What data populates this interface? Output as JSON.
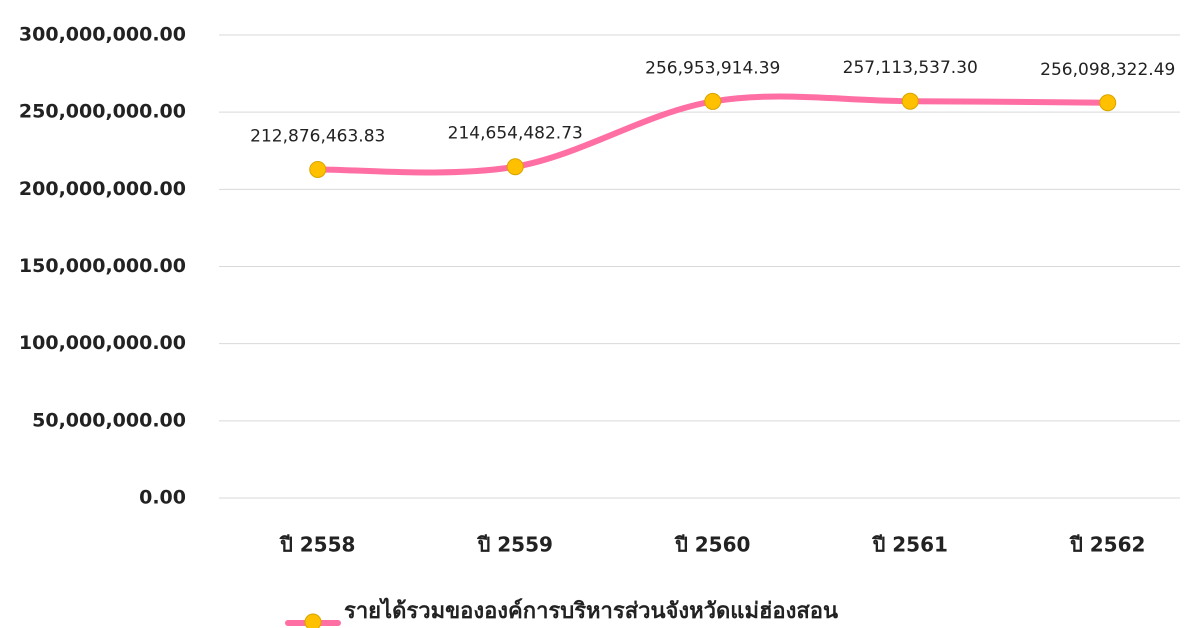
{
  "chart_data": {
    "type": "line",
    "categories": [
      "ปี 2558",
      "ปี 2559",
      "ปี 2560",
      "ปี 2561",
      "ปี 2562"
    ],
    "series": [
      {
        "name": "รายได้รวมขององค์การบริหารส่วนจังหวัดแม่ฮ่องสอน",
        "color": "#ff6fa3",
        "marker_color": "#ffc000",
        "values": [
          212876463.83,
          214654482.73,
          256953914.39,
          257113537.3,
          256098322.49
        ],
        "value_labels": [
          "212,876,463.83",
          "214,654,482.73",
          "256,953,914.39",
          "257,113,537.30",
          "256,098,322.49"
        ]
      }
    ],
    "ylim": [
      0,
      300000000
    ],
    "yticks": [
      {
        "value": 0,
        "label": "0.00"
      },
      {
        "value": 50000000,
        "label": "50,000,000.00"
      },
      {
        "value": 100000000,
        "label": "100,000,000.00"
      },
      {
        "value": 150000000,
        "label": "150,000,000.00"
      },
      {
        "value": 200000000,
        "label": "200,000,000.00"
      },
      {
        "value": 250000000,
        "label": "250,000,000.00"
      },
      {
        "value": 300000000,
        "label": "300,000,000.00"
      }
    ],
    "grid": true,
    "smooth": true,
    "legend": "bottom"
  }
}
